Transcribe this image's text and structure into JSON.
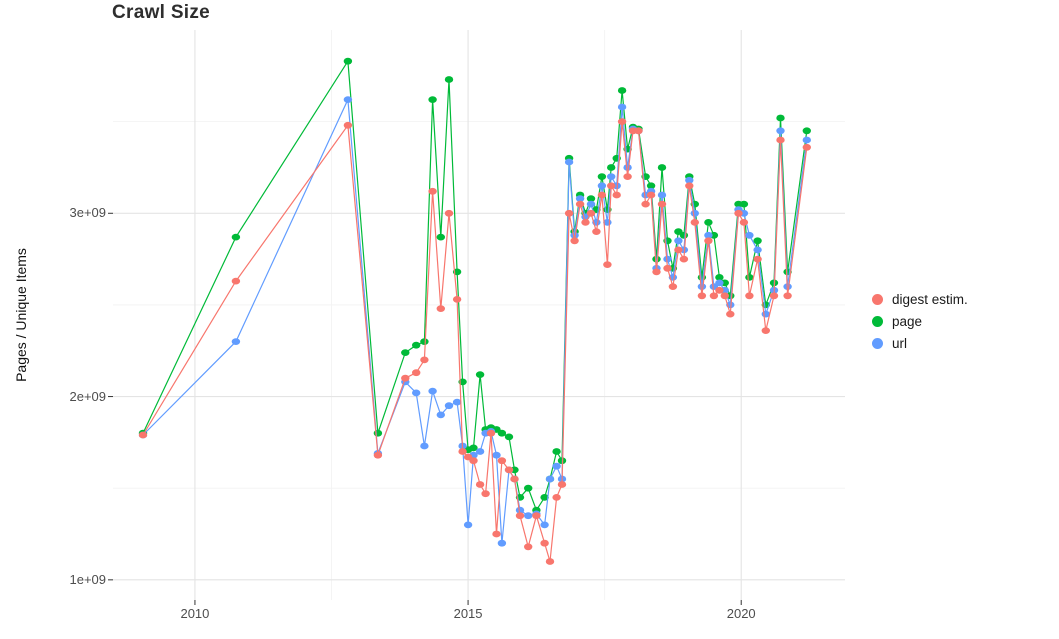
{
  "colors": {
    "digest": "#F8766D",
    "page": "#00BA38",
    "url": "#619CFF",
    "grid_major": "#e4e4e4",
    "grid_minor": "#f2f2f2",
    "tick_mark": "#333333",
    "tick_text": "#4d4d4d",
    "title_text": "#2e2e2e"
  },
  "chart_data": {
    "type": "line",
    "title": "Crawl Size",
    "xlabel": "",
    "ylabel": "Pages / Unique Items",
    "legend_position": "right",
    "grid": true,
    "y_unit_scale": 1000000000,
    "x_tick_labels": [
      "2010",
      "2015",
      "2020"
    ],
    "x_tick_values": [
      2010,
      2015,
      2020
    ],
    "x_minor_values": [
      2012.5,
      2017.5
    ],
    "y_tick_labels": [
      "1e+09",
      "2e+09",
      "3e+09"
    ],
    "y_tick_values_e9": [
      1,
      2,
      3
    ],
    "y_minor_values_e9": [
      1.5,
      2.5,
      3.5
    ],
    "xlim": [
      2008.5,
      2021.9
    ],
    "ylim_e9": [
      0.89,
      4.0
    ],
    "x_years": [
      2009.05,
      2010.75,
      2012.8,
      2013.35,
      2013.85,
      2014.05,
      2014.2,
      2014.35,
      2014.5,
      2014.65,
      2014.8,
      2014.9,
      2015.0,
      2015.1,
      2015.22,
      2015.32,
      2015.42,
      2015.52,
      2015.62,
      2015.75,
      2015.85,
      2015.95,
      2016.1,
      2016.25,
      2016.4,
      2016.5,
      2016.62,
      2016.72,
      2016.85,
      2016.95,
      2017.05,
      2017.15,
      2017.25,
      2017.35,
      2017.45,
      2017.55,
      2017.62,
      2017.72,
      2017.82,
      2017.92,
      2018.02,
      2018.12,
      2018.25,
      2018.35,
      2018.45,
      2018.55,
      2018.65,
      2018.75,
      2018.85,
      2018.95,
      2019.05,
      2019.15,
      2019.28,
      2019.4,
      2019.5,
      2019.6,
      2019.7,
      2019.8,
      2019.95,
      2020.05,
      2020.15,
      2020.3,
      2020.45,
      2020.6,
      2020.72,
      2020.85,
      2021.2
    ],
    "series": [
      {
        "name": "digest estim.",
        "color_key": "digest",
        "values_e9": [
          1.79,
          2.63,
          3.48,
          1.68,
          2.1,
          2.13,
          2.2,
          3.12,
          2.48,
          3.0,
          2.53,
          1.7,
          1.67,
          1.65,
          1.52,
          1.47,
          1.8,
          1.25,
          1.65,
          1.6,
          1.55,
          1.35,
          1.18,
          1.35,
          1.2,
          1.1,
          1.45,
          1.52,
          3.0,
          2.85,
          3.05,
          2.95,
          3.0,
          2.9,
          3.1,
          2.72,
          3.15,
          3.1,
          3.5,
          3.2,
          3.45,
          3.45,
          3.05,
          3.1,
          2.68,
          3.05,
          2.7,
          2.6,
          2.8,
          2.75,
          3.15,
          2.95,
          2.55,
          2.85,
          2.55,
          2.58,
          2.55,
          2.45,
          3.0,
          2.95,
          2.55,
          2.75,
          2.36,
          2.55,
          3.4,
          2.55,
          3.36
        ]
      },
      {
        "name": "page",
        "color_key": "page",
        "values_e9": [
          1.8,
          2.87,
          3.83,
          1.8,
          2.24,
          2.28,
          2.3,
          3.62,
          2.87,
          3.73,
          2.68,
          2.08,
          1.71,
          1.72,
          2.12,
          1.82,
          1.83,
          1.82,
          1.8,
          1.78,
          1.6,
          1.45,
          1.5,
          1.38,
          1.45,
          1.55,
          1.7,
          1.65,
          3.3,
          2.9,
          3.1,
          3.0,
          3.08,
          3.02,
          3.2,
          3.02,
          3.25,
          3.3,
          3.67,
          3.35,
          3.47,
          3.46,
          3.2,
          3.15,
          2.75,
          3.25,
          2.85,
          2.7,
          2.9,
          2.88,
          3.2,
          3.05,
          2.65,
          2.95,
          2.88,
          2.65,
          2.62,
          2.55,
          3.05,
          3.05,
          2.65,
          2.85,
          2.5,
          2.62,
          3.52,
          2.68,
          3.45
        ]
      },
      {
        "name": "url",
        "color_key": "url",
        "values_e9": [
          1.79,
          2.3,
          3.62,
          1.69,
          2.08,
          2.02,
          1.73,
          2.03,
          1.9,
          1.95,
          1.97,
          1.73,
          1.3,
          1.68,
          1.7,
          1.8,
          1.81,
          1.68,
          1.2,
          1.6,
          1.55,
          1.38,
          1.35,
          1.36,
          1.3,
          1.55,
          1.62,
          1.55,
          3.28,
          2.88,
          3.08,
          2.98,
          3.05,
          2.95,
          3.15,
          2.95,
          3.2,
          3.15,
          3.58,
          3.25,
          3.46,
          3.45,
          3.1,
          3.12,
          2.7,
          3.1,
          2.75,
          2.65,
          2.85,
          2.8,
          3.18,
          3.0,
          2.6,
          2.88,
          2.6,
          2.62,
          2.58,
          2.5,
          3.02,
          3.0,
          2.88,
          2.8,
          2.45,
          2.58,
          3.45,
          2.6,
          3.4
        ]
      }
    ]
  }
}
